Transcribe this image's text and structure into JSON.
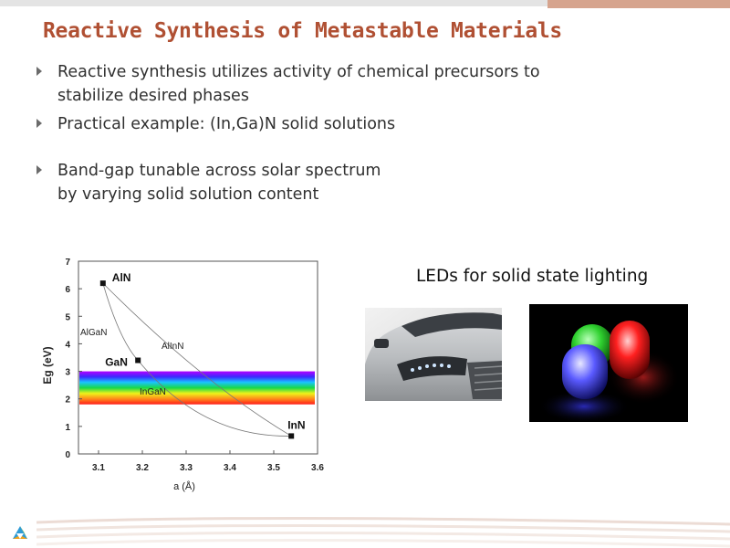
{
  "slide": {
    "title": "Reactive Synthesis of Metastable Materials",
    "bullets": [
      {
        "lines": [
          "Reactive synthesis utilizes activity of chemical precursors to",
          "stabilize desired phases"
        ]
      },
      {
        "lines": [
          "Practical example: (In,Ga)N solid solutions"
        ]
      },
      {
        "lines": [
          "Band-gap tunable across solar spectrum",
          "by varying solid solution content"
        ]
      }
    ],
    "leds_caption": "LEDs for solid state lighting",
    "bullet_icon": "triangle-bullet-icon",
    "accent_color": "#b05033"
  },
  "chart_data": {
    "type": "scatter",
    "xlabel": "a (Å)",
    "ylabel": "Eg (eV)",
    "xlim": [
      3.1,
      3.6
    ],
    "ylim": [
      0,
      7
    ],
    "x_ticks": [
      "3.1",
      "3.2",
      "3.3",
      "3.4",
      "3.5",
      "3.6"
    ],
    "y_ticks": [
      "0",
      "1",
      "2",
      "3",
      "4",
      "5",
      "6",
      "7"
    ],
    "points": [
      {
        "label": "AlN",
        "x": 3.11,
        "y": 6.2
      },
      {
        "label": "GaN",
        "x": 3.19,
        "y": 3.4
      },
      {
        "label": "InN",
        "x": 3.54,
        "y": 0.65
      }
    ],
    "curve_labels": [
      "AlGaN",
      "AlInN",
      "InGaN"
    ],
    "solar_band": {
      "from": 1.8,
      "to": 3.0
    },
    "grid": false
  }
}
